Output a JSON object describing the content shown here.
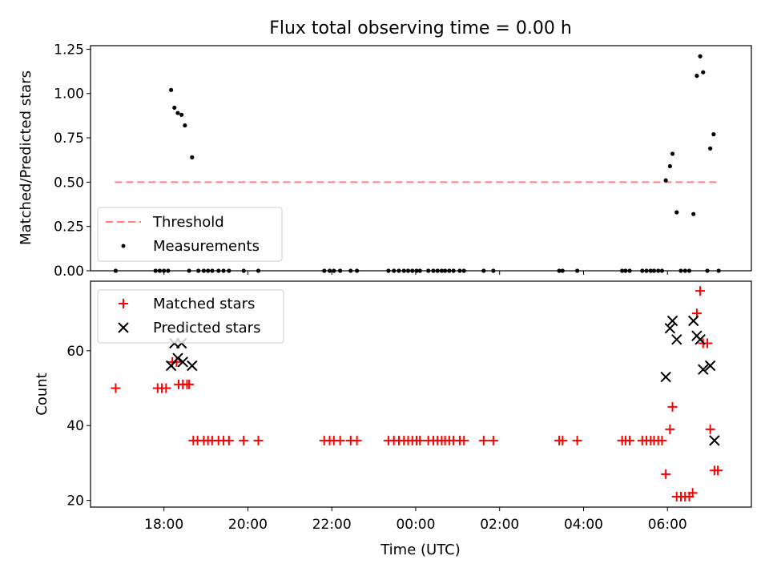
{
  "chart_data": [
    {
      "type": "scatter",
      "title": "Flux total observing time = 0.00 h",
      "ylabel": "Matched/Predicted stars",
      "xlabel": "",
      "ylim": [
        0,
        1.27
      ],
      "yticks": [
        0,
        0.25,
        0.5,
        0.75,
        1.0,
        1.25
      ],
      "ytick_labels": [
        "0.00",
        "0.25",
        "0.50",
        "0.75",
        "1.00",
        "1.25"
      ],
      "grid": false,
      "legend_position": "lower-left",
      "series": [
        {
          "name": "Threshold",
          "kind": "line",
          "style": "dashed",
          "color": "#ff7f7f",
          "x": [
            16.83,
            31.2
          ],
          "y": [
            0.5,
            0.5
          ]
        },
        {
          "name": "Measurements",
          "kind": "scatter",
          "color": "#000000",
          "points": [
            [
              16.85,
              0.0
            ],
            [
              17.8,
              0.0
            ],
            [
              17.9,
              0.0
            ],
            [
              18.0,
              0.0
            ],
            [
              18.1,
              0.0
            ],
            [
              18.17,
              1.02
            ],
            [
              18.25,
              0.92
            ],
            [
              18.33,
              0.89
            ],
            [
              18.42,
              0.88
            ],
            [
              18.5,
              0.82
            ],
            [
              18.67,
              0.64
            ],
            [
              18.6,
              0.0
            ],
            [
              18.82,
              0.0
            ],
            [
              18.95,
              0.0
            ],
            [
              19.05,
              0.0
            ],
            [
              19.15,
              0.0
            ],
            [
              19.3,
              0.0
            ],
            [
              19.42,
              0.0
            ],
            [
              19.55,
              0.0
            ],
            [
              19.9,
              0.0
            ],
            [
              20.25,
              0.0
            ],
            [
              21.82,
              0.0
            ],
            [
              21.95,
              0.0
            ],
            [
              22.05,
              0.0
            ],
            [
              22.2,
              0.0
            ],
            [
              22.45,
              0.0
            ],
            [
              22.6,
              0.0
            ],
            [
              23.35,
              0.0
            ],
            [
              23.48,
              0.0
            ],
            [
              23.6,
              0.0
            ],
            [
              23.72,
              0.0
            ],
            [
              23.82,
              0.0
            ],
            [
              23.92,
              0.0
            ],
            [
              24.02,
              0.0
            ],
            [
              24.1,
              0.0
            ],
            [
              24.3,
              0.0
            ],
            [
              24.42,
              0.0
            ],
            [
              24.52,
              0.0
            ],
            [
              24.62,
              0.0
            ],
            [
              24.7,
              0.0
            ],
            [
              24.8,
              0.0
            ],
            [
              24.9,
              0.0
            ],
            [
              25.05,
              0.0
            ],
            [
              25.15,
              0.0
            ],
            [
              25.62,
              0.0
            ],
            [
              25.85,
              0.0
            ],
            [
              27.42,
              0.0
            ],
            [
              27.5,
              0.0
            ],
            [
              27.85,
              0.0
            ],
            [
              28.92,
              0.0
            ],
            [
              29.0,
              0.0
            ],
            [
              29.1,
              0.0
            ],
            [
              29.4,
              0.0
            ],
            [
              29.5,
              0.0
            ],
            [
              29.6,
              0.0
            ],
            [
              29.68,
              0.0
            ],
            [
              29.78,
              0.0
            ],
            [
              29.87,
              0.0
            ],
            [
              29.96,
              0.51
            ],
            [
              30.06,
              0.59
            ],
            [
              30.12,
              0.66
            ],
            [
              30.22,
              0.33
            ],
            [
              30.32,
              0.0
            ],
            [
              30.42,
              0.0
            ],
            [
              30.52,
              0.0
            ],
            [
              30.62,
              0.32
            ],
            [
              30.7,
              1.1
            ],
            [
              30.78,
              1.21
            ],
            [
              30.85,
              1.12
            ],
            [
              30.95,
              0.0
            ],
            [
              31.02,
              0.69
            ],
            [
              31.1,
              0.77
            ],
            [
              31.22,
              0.0
            ]
          ]
        }
      ]
    },
    {
      "type": "scatter",
      "title": "",
      "ylabel": "Count",
      "xlabel": "Time (UTC)",
      "xlim": [
        16.25,
        32.0
      ],
      "ylim": [
        18.2,
        78.6
      ],
      "yticks": [
        20,
        40,
        60
      ],
      "ytick_labels": [
        "20",
        "40",
        "60"
      ],
      "xticks": [
        18,
        20,
        22,
        24,
        26,
        28,
        30
      ],
      "xtick_labels": [
        "18:00",
        "20:00",
        "22:00",
        "00:00",
        "02:00",
        "04:00",
        "06:00"
      ],
      "grid": false,
      "legend_position": "upper-left",
      "series": [
        {
          "name": "Matched stars",
          "marker": "plus",
          "color": "#ff0000",
          "points": [
            [
              16.85,
              50
            ],
            [
              17.85,
              50
            ],
            [
              17.95,
              50
            ],
            [
              18.05,
              50
            ],
            [
              18.2,
              57
            ],
            [
              18.3,
              57
            ],
            [
              18.35,
              51
            ],
            [
              18.45,
              51
            ],
            [
              18.55,
              51
            ],
            [
              18.6,
              51
            ],
            [
              18.7,
              36
            ],
            [
              18.8,
              36
            ],
            [
              18.95,
              36
            ],
            [
              19.05,
              36
            ],
            [
              19.15,
              36
            ],
            [
              19.3,
              36
            ],
            [
              19.42,
              36
            ],
            [
              19.55,
              36
            ],
            [
              19.9,
              36
            ],
            [
              20.25,
              36
            ],
            [
              21.82,
              36
            ],
            [
              21.95,
              36
            ],
            [
              22.05,
              36
            ],
            [
              22.2,
              36
            ],
            [
              22.45,
              36
            ],
            [
              22.6,
              36
            ],
            [
              23.35,
              36
            ],
            [
              23.48,
              36
            ],
            [
              23.6,
              36
            ],
            [
              23.72,
              36
            ],
            [
              23.82,
              36
            ],
            [
              23.92,
              36
            ],
            [
              24.02,
              36
            ],
            [
              24.1,
              36
            ],
            [
              24.3,
              36
            ],
            [
              24.42,
              36
            ],
            [
              24.52,
              36
            ],
            [
              24.62,
              36
            ],
            [
              24.7,
              36
            ],
            [
              24.8,
              36
            ],
            [
              24.9,
              36
            ],
            [
              25.05,
              36
            ],
            [
              25.15,
              36
            ],
            [
              25.62,
              36
            ],
            [
              25.85,
              36
            ],
            [
              27.42,
              36
            ],
            [
              27.5,
              36
            ],
            [
              27.85,
              36
            ],
            [
              28.92,
              36
            ],
            [
              29.0,
              36
            ],
            [
              29.1,
              36
            ],
            [
              29.4,
              36
            ],
            [
              29.5,
              36
            ],
            [
              29.6,
              36
            ],
            [
              29.68,
              36
            ],
            [
              29.78,
              36
            ],
            [
              29.87,
              36
            ],
            [
              29.96,
              27
            ],
            [
              30.06,
              39
            ],
            [
              30.12,
              45
            ],
            [
              30.22,
              21
            ],
            [
              30.32,
              21
            ],
            [
              30.42,
              21
            ],
            [
              30.52,
              21
            ],
            [
              30.6,
              22
            ],
            [
              30.7,
              70
            ],
            [
              30.78,
              76
            ],
            [
              30.85,
              62
            ],
            [
              30.95,
              62
            ],
            [
              31.02,
              39
            ],
            [
              31.12,
              28
            ],
            [
              31.2,
              28
            ]
          ]
        },
        {
          "name": "Predicted stars",
          "marker": "x",
          "color": "#000000",
          "points": [
            [
              18.17,
              56
            ],
            [
              18.25,
              62
            ],
            [
              18.33,
              58
            ],
            [
              18.42,
              62
            ],
            [
              18.45,
              57
            ],
            [
              18.67,
              56
            ],
            [
              29.96,
              53
            ],
            [
              30.06,
              66
            ],
            [
              30.12,
              68
            ],
            [
              30.22,
              63
            ],
            [
              30.62,
              68
            ],
            [
              30.7,
              64
            ],
            [
              30.78,
              63
            ],
            [
              30.85,
              55
            ],
            [
              31.02,
              56
            ],
            [
              31.12,
              36
            ]
          ]
        }
      ]
    }
  ]
}
